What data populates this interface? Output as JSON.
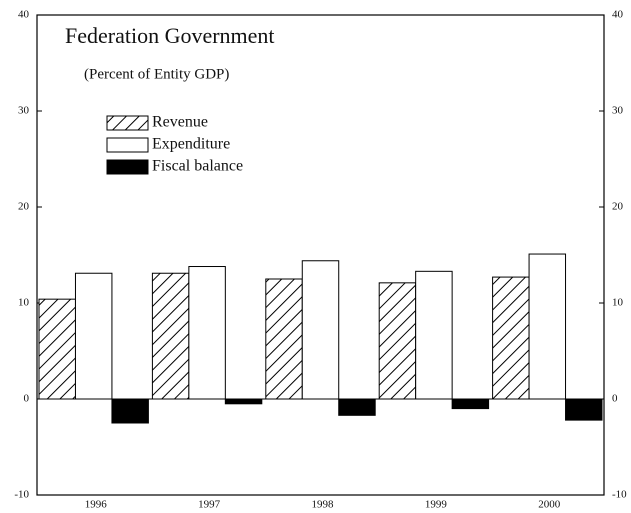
{
  "chart_data": {
    "type": "bar",
    "title": "Federation Government",
    "subtitle": "(Percent of Entity GDP)",
    "categories": [
      "1996",
      "1997",
      "1998",
      "1999",
      "2000"
    ],
    "series": [
      {
        "name": "Revenue",
        "color": "#000000",
        "pattern": "hatch",
        "values": [
          10.4,
          13.1,
          12.5,
          12.1,
          12.7
        ]
      },
      {
        "name": "Expenditure",
        "color": "#ffffff",
        "values": [
          13.1,
          13.8,
          14.4,
          13.3,
          15.1
        ]
      },
      {
        "name": "Fiscal balance",
        "color": "#000000",
        "values": [
          -2.5,
          -0.5,
          -1.7,
          -1.0,
          -2.2
        ]
      }
    ],
    "ylim": [
      -10,
      40
    ],
    "yticks": [
      -10,
      0,
      10,
      20,
      30,
      40
    ],
    "y2lim": [
      -10,
      40
    ],
    "y2ticks": [
      -10,
      0,
      10,
      20,
      30,
      40
    ],
    "legend": "upper left"
  }
}
